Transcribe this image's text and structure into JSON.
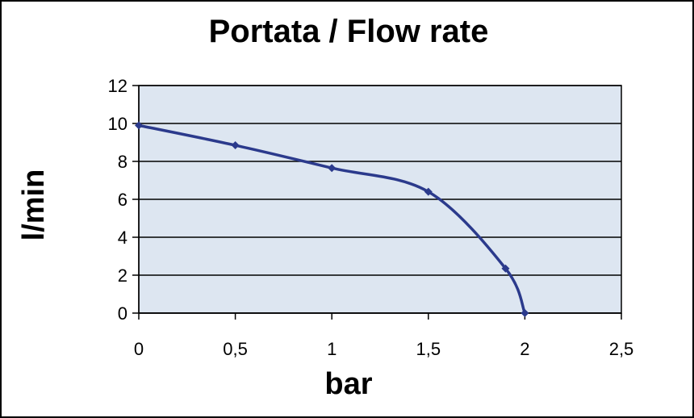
{
  "chart_data": {
    "type": "line",
    "title": "Portata / Flow rate",
    "xlabel": "bar",
    "ylabel": "l/min",
    "xlim": [
      0,
      2.5
    ],
    "ylim": [
      0,
      12
    ],
    "x_ticks": [
      "0",
      "0,5",
      "1",
      "1,5",
      "2",
      "2,5"
    ],
    "y_ticks": [
      "0",
      "2",
      "4",
      "6",
      "8",
      "10",
      "12"
    ],
    "grid": "horizontal",
    "legend": "none",
    "plot_background": "#dde6f1",
    "series": [
      {
        "color": "#2b3a8c",
        "points": [
          {
            "x": 0,
            "y": 9.9
          },
          {
            "x": 0.5,
            "y": 8.85
          },
          {
            "x": 1,
            "y": 7.65
          },
          {
            "x": 1.5,
            "y": 6.4
          },
          {
            "x": 1.9,
            "y": 2.35
          },
          {
            "x": 2,
            "y": 0
          }
        ]
      }
    ]
  }
}
